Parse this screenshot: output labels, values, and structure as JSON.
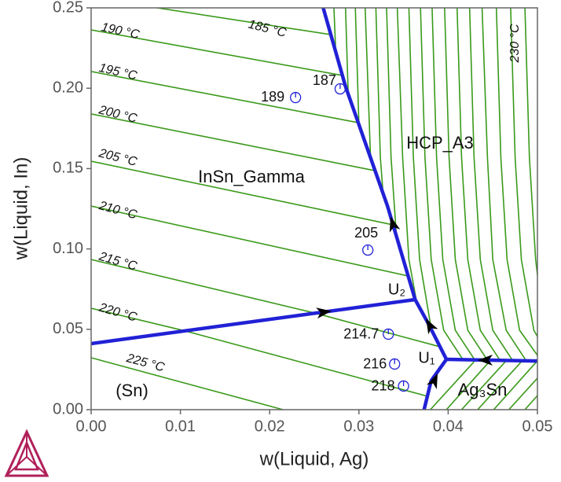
{
  "chart_data": {
    "type": "line",
    "xlabel": "w(Liquid, Ag)",
    "ylabel": "w(Liquid, In)",
    "xlim": [
      0,
      0.05
    ],
    "ylim": [
      0,
      0.25
    ],
    "xticks": [
      {
        "value": 0,
        "label": "0.00"
      },
      {
        "value": 0.01,
        "label": "0.01"
      },
      {
        "value": 0.02,
        "label": "0.02"
      },
      {
        "value": 0.03,
        "label": "0.03"
      },
      {
        "value": 0.04,
        "label": "0.04"
      },
      {
        "value": 0.05,
        "label": "0.05"
      }
    ],
    "yticks": [
      {
        "value": 0,
        "label": "0.00"
      },
      {
        "value": 0.05,
        "label": "0.05"
      },
      {
        "value": 0.1,
        "label": "0.10"
      },
      {
        "value": 0.15,
        "label": "0.15"
      },
      {
        "value": 0.2,
        "label": "0.20"
      },
      {
        "value": 0.25,
        "label": "0.25"
      }
    ],
    "isotherms": {
      "color": "#3a9a1a",
      "series": [
        {
          "x": [
            0.0074,
            0.0268
          ],
          "values": [
            0.25,
            0.2334
          ]
        },
        {
          "x": [
            0,
            0.0282
          ],
          "values": [
            0.2363,
            0.2079
          ]
        },
        {
          "x": [
            0,
            0.0299
          ],
          "values": [
            0.2104,
            0.1786
          ]
        },
        {
          "x": [
            0,
            0.0318
          ],
          "values": [
            0.184,
            0.1487
          ]
        },
        {
          "x": [
            0,
            0.0338
          ],
          "values": [
            0.1546,
            0.115
          ]
        },
        {
          "x": [
            0,
            0.0355
          ],
          "values": [
            0.1267,
            0.0832
          ]
        },
        {
          "x": [
            0,
            0.025,
            0.0391
          ],
          "values": [
            0.0934,
            0.0602,
            0.0391
          ]
        },
        {
          "x": [
            0,
            0.0106,
            0.0377
          ],
          "values": [
            0.0631,
            0.0489,
            0.0083
          ]
        },
        {
          "x": [
            0,
            0.0215
          ],
          "values": [
            0.0323,
            0
          ]
        },
        {
          "x": [
            0.0272,
            0.0274
          ],
          "values": [
            0.25,
            0.2231
          ]
        },
        {
          "x": [
            0.0285,
            0.0288
          ],
          "values": [
            0.25,
            0.1962
          ]
        },
        {
          "x": [
            0.0296,
            0.03
          ],
          "values": [
            0.25,
            0.1776
          ]
        },
        {
          "x": [
            0.0307,
            0.0313
          ],
          "values": [
            0.25,
            0.157
          ]
        },
        {
          "x": [
            0.0319,
            0.0324,
            0.0327
          ],
          "values": [
            0.25,
            0.157,
            0.135
          ]
        },
        {
          "x": [
            0.0331,
            0.0336,
            0.0342
          ],
          "values": [
            0.25,
            0.157,
            0.1081
          ]
        },
        {
          "x": [
            0.0343,
            0.0349,
            0.0356,
            0.0364
          ],
          "values": [
            0.25,
            0.157,
            0.0934,
            0.069
          ]
        },
        {
          "x": [
            0.0356,
            0.0361,
            0.0368,
            0.0381
          ],
          "values": [
            0.25,
            0.157,
            0.0934,
            0.0504
          ]
        },
        {
          "x": [
            0.0369,
            0.0374,
            0.0381,
            0.0395,
            0.0417
          ],
          "values": [
            0.25,
            0.157,
            0.0934,
            0.0494,
            0.0308
          ]
        },
        {
          "x": [
            0.0382,
            0.0387,
            0.0394,
            0.0408,
            0.043
          ],
          "values": [
            0.25,
            0.157,
            0.0934,
            0.0494,
            0.0308
          ]
        },
        {
          "x": [
            0.0396,
            0.0401,
            0.0408,
            0.0422,
            0.0444
          ],
          "values": [
            0.25,
            0.157,
            0.0934,
            0.0494,
            0.0308
          ]
        },
        {
          "x": [
            0.041,
            0.0415,
            0.0422,
            0.0436,
            0.0458
          ],
          "values": [
            0.25,
            0.157,
            0.0934,
            0.0494,
            0.0308
          ]
        },
        {
          "x": [
            0.0424,
            0.0429,
            0.0436,
            0.045,
            0.0472
          ],
          "values": [
            0.25,
            0.157,
            0.0934,
            0.0494,
            0.0308
          ]
        },
        {
          "x": [
            0.0438,
            0.0444,
            0.045,
            0.0465,
            0.0487
          ],
          "values": [
            0.25,
            0.157,
            0.0934,
            0.0494,
            0.0308
          ]
        },
        {
          "x": [
            0.0454,
            0.0459,
            0.0466,
            0.048,
            0.05
          ],
          "values": [
            0.25,
            0.157,
            0.0934,
            0.0494,
            0.0338
          ]
        },
        {
          "x": [
            0.047,
            0.0475,
            0.0482,
            0.0496,
            0.05
          ],
          "values": [
            0.25,
            0.157,
            0.0934,
            0.0494,
            0.0455
          ]
        },
        {
          "x": [
            0.0486,
            0.0491,
            0.0498,
            0.05
          ],
          "values": [
            0.25,
            0.157,
            0.0934,
            0.0837
          ]
        },
        {
          "x": [
            0.038,
            0.0429
          ],
          "values": [
            0,
            0.0298
          ]
        },
        {
          "x": [
            0.0398,
            0.0446
          ],
          "values": [
            0,
            0.0298
          ]
        },
        {
          "x": [
            0.0415,
            0.0464
          ],
          "values": [
            0,
            0.0298
          ]
        },
        {
          "x": [
            0.0433,
            0.0482
          ],
          "values": [
            0,
            0.0298
          ]
        },
        {
          "x": [
            0.0451,
            0.0499
          ],
          "values": [
            0,
            0.0298
          ]
        },
        {
          "x": [
            0.0468,
            0.05
          ],
          "values": [
            0,
            0.0196
          ]
        },
        {
          "x": [
            0.0486,
            0.05
          ],
          "values": [
            0,
            0.0088
          ]
        }
      ]
    },
    "boundaries": {
      "color": "#2121d6",
      "series": [
        {
          "x": [
            0,
            0.0363
          ],
          "values": [
            0.0411,
            0.0685
          ]
        },
        {
          "x": [
            0.0363,
            0.0332,
            0.0285,
            0.026
          ],
          "values": [
            0.0685,
            0.1267,
            0.2011,
            0.25
          ]
        },
        {
          "x": [
            0.0363,
            0.0378,
            0.0398
          ],
          "values": [
            0.0685,
            0.0533,
            0.0313
          ]
        },
        {
          "x": [
            0.0398,
            0.0381,
            0.0373
          ],
          "values": [
            0.0313,
            0.0181,
            0
          ]
        },
        {
          "x": [
            0.0398,
            0.0444,
            0.05
          ],
          "values": [
            0.0313,
            0.0308,
            0.0303
          ]
        }
      ]
    },
    "points": {
      "color": "#2121d6",
      "items": [
        {
          "label": "187",
          "x": 0.0279,
          "y": 0.1996
        },
        {
          "label": "189",
          "x": 0.0229,
          "y": 0.1942
        },
        {
          "label": "205",
          "x": 0.031,
          "y": 0.0993
        },
        {
          "label": "214.7",
          "x": 0.0333,
          "y": 0.047
        },
        {
          "label": "216",
          "x": 0.034,
          "y": 0.0284
        },
        {
          "label": "218",
          "x": 0.035,
          "y": 0.0147
        }
      ]
    },
    "isotherm_labels": [
      "185 °C",
      "190 °C",
      "195 °C",
      "200 °C",
      "205 °C",
      "210 °C",
      "215 °C",
      "220 °C",
      "225 °C",
      "230 °C"
    ],
    "region_labels": [
      "InSn_Gamma",
      "HCP_A3",
      "(Sn)",
      "Ag₃Sn",
      "U₂",
      "U₁"
    ]
  }
}
